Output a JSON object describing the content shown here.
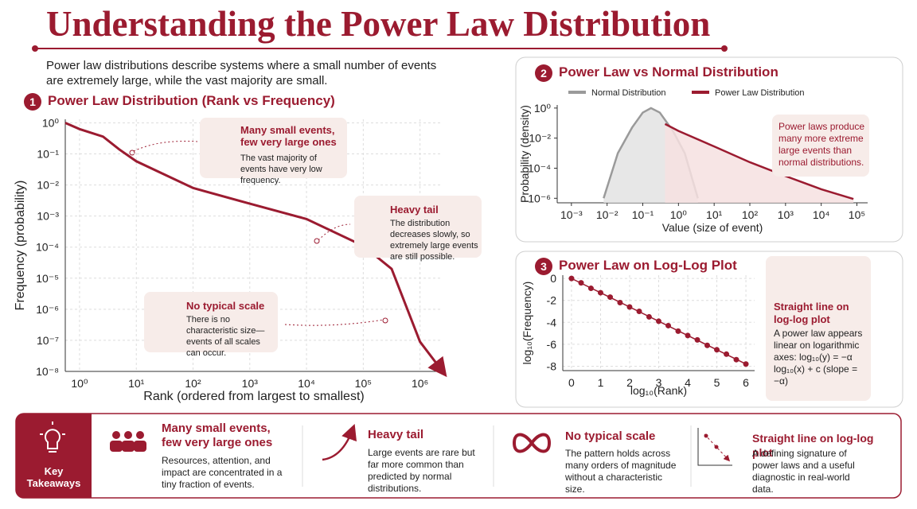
{
  "header": {
    "title": "Understanding the Power Law Distribution",
    "intro": "Power law distributions describe systems where a small number of events are extremely large, while the vast majority are small."
  },
  "chart_data": [
    {
      "type": "line",
      "number": "1",
      "title": "Power Law Distribution (Rank vs Frequency)",
      "x_label": "Rank (ordered from largest to smallest)",
      "y_label": "Frequency (probability)",
      "log_x": true,
      "log_y": true,
      "grid": true,
      "color": "#9b1b30",
      "xlim": [
        0.56,
        2500000
      ],
      "ylim": [
        1e-08,
        1.3
      ],
      "xticks": [
        {
          "value": 1,
          "label": "10⁰"
        },
        {
          "value": 10,
          "label": "10¹"
        },
        {
          "value": 100,
          "label": "10²"
        },
        {
          "value": 1000,
          "label": "10³"
        },
        {
          "value": 10000,
          "label": "10⁴"
        },
        {
          "value": 100000,
          "label": "10⁵"
        },
        {
          "value": 1000000,
          "label": "10⁶"
        }
      ],
      "yticks": [
        {
          "value": 1,
          "label": "10⁰"
        },
        {
          "value": 0.1,
          "label": "10⁻¹"
        },
        {
          "value": 0.01,
          "label": "10⁻²"
        },
        {
          "value": 0.001,
          "label": "10⁻³"
        },
        {
          "value": 0.0001,
          "label": "10⁻⁴"
        },
        {
          "value": 1e-05,
          "label": "10⁻⁵"
        },
        {
          "value": 1e-06,
          "label": "10⁻⁶"
        },
        {
          "value": 1e-07,
          "label": "10⁻⁷"
        },
        {
          "value": 1e-08,
          "label": "10⁻⁸"
        }
      ],
      "x": [
        0.56,
        1,
        2.6,
        5,
        10,
        100,
        1000,
        10000,
        100000,
        316000,
        1000000,
        2500000
      ],
      "values": [
        1,
        0.63,
        0.36,
        0.14,
        0.058,
        0.008,
        0.0025,
        0.0008,
        0.00011,
        2e-05,
        9e-08,
        1e-08
      ],
      "annotations": [
        {
          "title": "Many small events, few very large ones",
          "text": "The vast majority of events have very low frequency."
        },
        {
          "title": "Heavy tail",
          "text": "The distribution decreases slowly, so extremely large events are still possible."
        },
        {
          "title": "No typical scale",
          "text": "There is no characteristic size—events of all scales can occur."
        }
      ]
    },
    {
      "type": "line",
      "number": "2",
      "title": "Power Law vs Normal Distribution",
      "x_label": "Value (size of event)",
      "y_label": "Probability (density)",
      "log_x": true,
      "log_y": true,
      "grid": false,
      "area": true,
      "xlim": [
        0.0004,
        200000
      ],
      "ylim": [
        5e-07,
        1.6
      ],
      "xticks": [
        {
          "value": 0.001,
          "label": "10⁻³"
        },
        {
          "value": 0.01,
          "label": "10⁻²"
        },
        {
          "value": 0.1,
          "label": "10⁻¹"
        },
        {
          "value": 1,
          "label": "10⁰"
        },
        {
          "value": 10,
          "label": "10¹"
        },
        {
          "value": 100,
          "label": "10²"
        },
        {
          "value": 1000,
          "label": "10³"
        },
        {
          "value": 10000,
          "label": "10⁴"
        },
        {
          "value": 100000,
          "label": "10⁵"
        }
      ],
      "yticks": [
        {
          "value": 1,
          "label": "10⁰"
        },
        {
          "value": 0.01,
          "label": "10⁻²"
        },
        {
          "value": 0.0001,
          "label": "10⁻⁴"
        },
        {
          "value": 1e-06,
          "label": "10⁻⁶"
        }
      ],
      "series": [
        {
          "name": "Normal Distribution",
          "color": "#9a9a9a",
          "fill": "#e3e3e3",
          "x": [
            0.008,
            0.02,
            0.05,
            0.1,
            0.17,
            0.3,
            0.7,
            1.5,
            3.5
          ],
          "values": [
            1e-06,
            0.001,
            0.05,
            0.5,
            1,
            0.5,
            0.03,
            0.001,
            1e-06
          ]
        },
        {
          "name": "Power Law Distribution",
          "color": "#9b1b30",
          "fill": "#f6e1e1",
          "x": [
            0.42,
            1,
            10,
            100,
            1000,
            10000,
            80000
          ],
          "values": [
            0.087,
            0.03,
            0.0028,
            0.00025,
            3e-05,
            4e-06,
            9e-07
          ]
        }
      ],
      "note": "Power laws produce many more extreme large events than normal distributions."
    },
    {
      "type": "scatter",
      "number": "3",
      "title": "Power Law on Log-Log Plot",
      "x_label": "log₁₀(Rank)",
      "y_label": "log₁₀(Frequency)",
      "grid": true,
      "color": "#9b1b30",
      "xlim": [
        -0.3,
        6.3
      ],
      "ylim": [
        -8.4,
        0.3
      ],
      "xticks": [
        0,
        1,
        2,
        3,
        4,
        5,
        6
      ],
      "yticks": [
        0,
        -2,
        -4,
        -6,
        -8
      ],
      "x": [
        0,
        0.33,
        0.67,
        1,
        1.33,
        1.67,
        2,
        2.33,
        2.67,
        3,
        3.33,
        3.67,
        4,
        4.33,
        4.67,
        5,
        5.33,
        5.67,
        6
      ],
      "values": [
        0,
        -0.4,
        -0.9,
        -1.3,
        -1.7,
        -2.2,
        -2.6,
        -3.0,
        -3.5,
        -3.9,
        -4.3,
        -4.8,
        -5.2,
        -5.6,
        -6.1,
        -6.5,
        -6.9,
        -7.4,
        -7.8
      ],
      "fit": {
        "x": [
          0,
          6
        ],
        "values": [
          0,
          -7.8
        ]
      },
      "note_title": "Straight line on log-log plot",
      "note": "A power law appears linear on logarithmic axes:  log₁₀(y) = −α log₁₀(x) + c  (slope = −α)"
    }
  ],
  "takeaways": {
    "title": "Key Takeaways",
    "items": [
      {
        "title": "Many small events, few very large ones",
        "text": "Resources, attention, and impact are concentrated in a tiny fraction of events."
      },
      {
        "title": "Heavy tail",
        "text": "Large events are rare but far more common than predicted by normal distributions."
      },
      {
        "title": "No typical scale",
        "text": "The pattern holds across many orders of magnitude without a characteristic size."
      },
      {
        "title": "Straight line on log-log plot",
        "text": "A defining signature of power laws and a useful diagnostic in real-world data."
      }
    ]
  }
}
